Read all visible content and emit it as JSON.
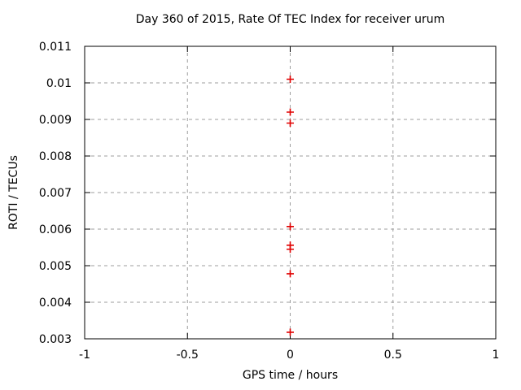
{
  "window": {
    "background": "#ffffff"
  },
  "chart_data": {
    "type": "scatter",
    "title": "Day 360 of 2015, Rate Of TEC Index for receiver urum",
    "xlabel": "GPS time / hours",
    "ylabel": "ROTI / TECUs",
    "xlim": [
      -1,
      1
    ],
    "ylim": [
      0.003,
      0.011
    ],
    "xticks": [
      -1,
      -0.5,
      0,
      0.5,
      1
    ],
    "xtick_labels": [
      "-1",
      "-0.5",
      "0",
      "0.5",
      "1"
    ],
    "yticks": [
      0.003,
      0.004,
      0.005,
      0.006,
      0.007,
      0.008,
      0.009,
      0.01,
      0.011
    ],
    "ytick_labels": [
      "0.003",
      "0.004",
      "0.005",
      "0.006",
      "0.007",
      "0.008",
      "0.009",
      "0.01",
      "0.011"
    ],
    "grid": true,
    "grid_style": "dashed",
    "legend": "none",
    "marker": "plus",
    "colors": {
      "marker": "#e00000",
      "grid": "#9e9e9e",
      "axis": "#000000",
      "text": "#000000",
      "background": "#ffffff"
    },
    "series": [
      {
        "name": "ROTI",
        "x": [
          0,
          0,
          0,
          0,
          0,
          0,
          0,
          0
        ],
        "y": [
          0.0101,
          0.0092,
          0.0089,
          0.00607,
          0.00556,
          0.00545,
          0.00478,
          0.00318
        ]
      }
    ]
  }
}
